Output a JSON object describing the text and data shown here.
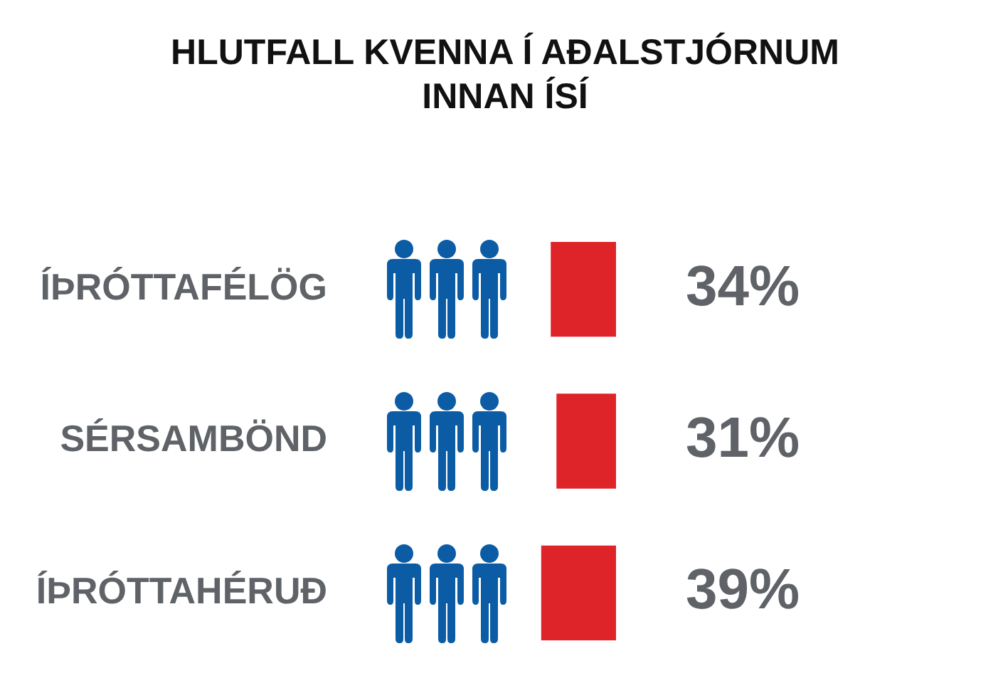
{
  "chart_data": {
    "type": "bar",
    "orientation": "horizontal",
    "title": "HLUTFALL KVENNA Í AÐALSTJÓRNUM INNAN ÍSÍ",
    "categories": [
      "ÍÞRÓTTAFÉLÖG",
      "SÉRSAMBÖND",
      "ÍÞRÓTTAHÉRUÐ"
    ],
    "values": [
      34,
      31,
      39
    ],
    "value_labels": [
      "34%",
      "31%",
      "39%"
    ],
    "color": "#de2429",
    "tick_labels": false
  }
}
